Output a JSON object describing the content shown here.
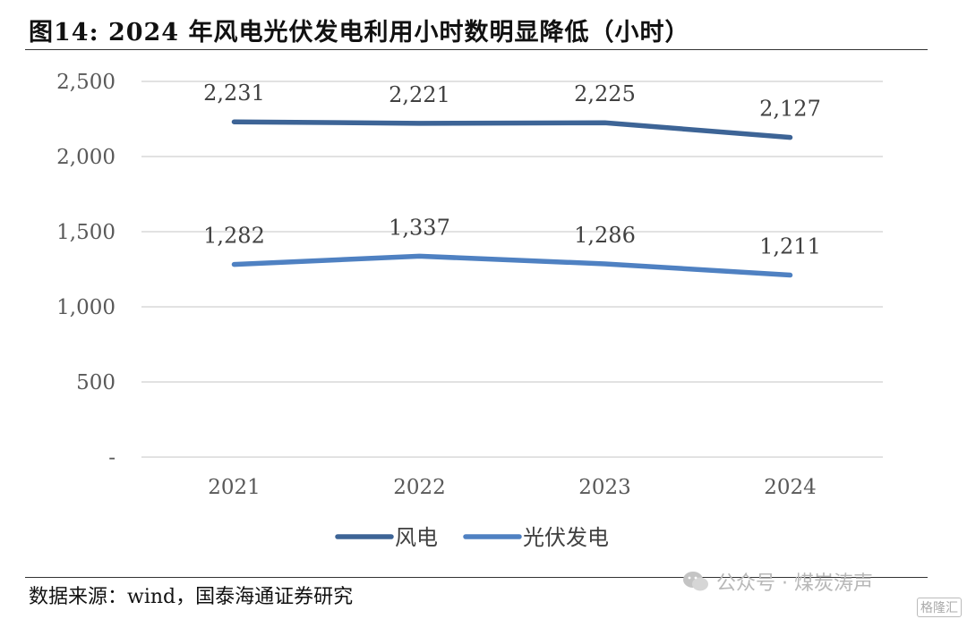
{
  "header": {
    "title": "图14:  2024 年风电光伏发电利用小时数明显降低（小时）"
  },
  "footer": {
    "source": "数据来源：wind，国泰海通证券研究",
    "watermark": "公众号 · 煤炭涛声",
    "watermark_logo": "格隆汇"
  },
  "chart_data": {
    "type": "line",
    "categories": [
      "2021",
      "2022",
      "2023",
      "2024"
    ],
    "y_ticks": [
      "-",
      "500",
      "1,000",
      "1,500",
      "2,000",
      "2,500"
    ],
    "ylim": [
      0,
      2500
    ],
    "grid": true,
    "legend_position": "bottom",
    "series": [
      {
        "name": "风电",
        "values": [
          2231,
          2221,
          2225,
          2127
        ],
        "labels": [
          "2,231",
          "2,221",
          "2,225",
          "2,127"
        ],
        "color": "#3d6496"
      },
      {
        "name": "光伏发电",
        "values": [
          1282,
          1337,
          1286,
          1211
        ],
        "labels": [
          "1,282",
          "1,337",
          "1,286",
          "1,211"
        ],
        "color": "#4f81c2"
      }
    ]
  }
}
